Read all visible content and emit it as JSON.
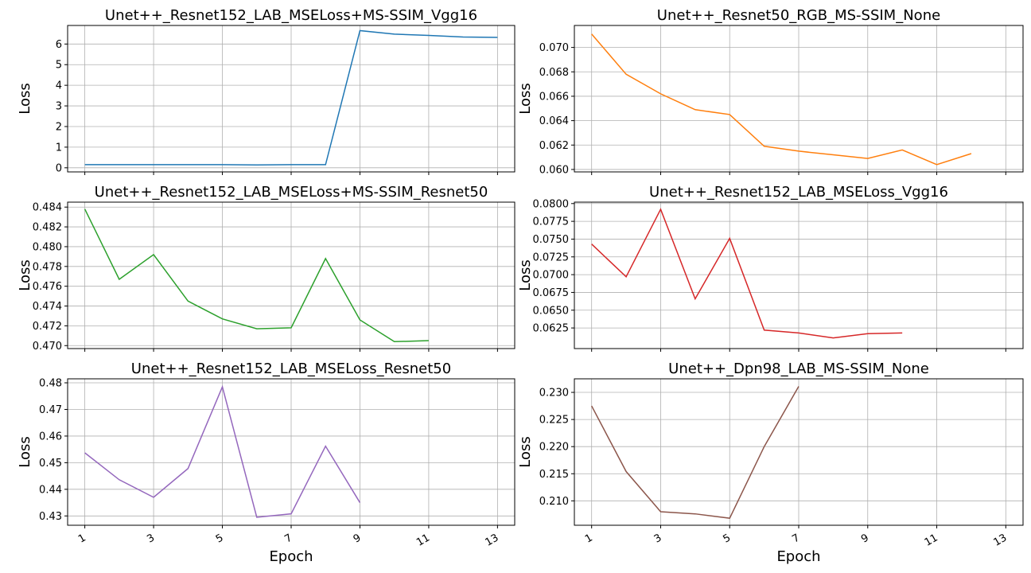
{
  "xlabel": "Epoch",
  "chart_data": [
    {
      "type": "line",
      "title": "Unet++_Resnet152_LAB_MSELoss+MS-SSIM_Vgg16",
      "ylabel": "Loss",
      "xlabel": "",
      "color": "#1f77b4",
      "x": [
        1,
        2,
        3,
        4,
        5,
        6,
        7,
        8,
        9,
        10,
        11,
        12,
        13
      ],
      "values": [
        0.15,
        0.15,
        0.15,
        0.15,
        0.15,
        0.14,
        0.15,
        0.15,
        6.65,
        6.48,
        6.42,
        6.34,
        6.32
      ],
      "xlim": [
        0.5,
        13.5
      ],
      "ylim": [
        -0.2,
        6.9
      ],
      "yticks": [
        0,
        1,
        2,
        3,
        4,
        5,
        6
      ],
      "ytick_labels": [
        "0",
        "1",
        "2",
        "3",
        "4",
        "5",
        "6"
      ],
      "xticks": [
        1,
        3,
        5,
        7,
        9,
        11,
        13
      ],
      "xtick_labels": [],
      "grid": true
    },
    {
      "type": "line",
      "title": "Unet++_Resnet50_RGB_MS-SSIM_None",
      "ylabel": "Loss",
      "xlabel": "",
      "color": "#ff7f0e",
      "x": [
        1,
        2,
        3,
        4,
        5,
        6,
        7,
        8,
        9,
        10,
        11,
        12
      ],
      "values": [
        0.0711,
        0.0678,
        0.0662,
        0.0649,
        0.0645,
        0.0619,
        0.0615,
        0.0612,
        0.0609,
        0.0616,
        0.0604,
        0.0613
      ],
      "xlim": [
        0.5,
        13.5
      ],
      "ylim": [
        0.0598,
        0.0718
      ],
      "yticks": [
        0.06,
        0.062,
        0.064,
        0.066,
        0.068,
        0.07
      ],
      "ytick_labels": [
        "0.060",
        "0.062",
        "0.064",
        "0.066",
        "0.068",
        "0.070"
      ],
      "xticks": [
        1,
        3,
        5,
        7,
        9,
        11,
        13
      ],
      "xtick_labels": [],
      "grid": true
    },
    {
      "type": "line",
      "title": "Unet++_Resnet152_LAB_MSELoss+MS-SSIM_Resnet50",
      "ylabel": "Loss",
      "xlabel": "",
      "color": "#2ca02c",
      "x": [
        1,
        2,
        3,
        4,
        5,
        6,
        7,
        8,
        9,
        10,
        11
      ],
      "values": [
        0.4838,
        0.4767,
        0.4792,
        0.4745,
        0.4727,
        0.4717,
        0.4718,
        0.4788,
        0.4726,
        0.4704,
        0.4705
      ],
      "xlim": [
        0.5,
        13.5
      ],
      "ylim": [
        0.4697,
        0.4845
      ],
      "yticks": [
        0.47,
        0.472,
        0.474,
        0.476,
        0.478,
        0.48,
        0.482,
        0.484
      ],
      "ytick_labels": [
        "0.470",
        "0.472",
        "0.474",
        "0.476",
        "0.478",
        "0.480",
        "0.482",
        "0.484"
      ],
      "xticks": [
        1,
        3,
        5,
        7,
        9,
        11,
        13
      ],
      "xtick_labels": [],
      "grid": true
    },
    {
      "type": "line",
      "title": "Unet++_Resnet152_LAB_MSELoss_Vgg16",
      "ylabel": "Loss",
      "xlabel": "",
      "color": "#d62728",
      "x": [
        1,
        2,
        3,
        4,
        5,
        6,
        7,
        8,
        9,
        10
      ],
      "values": [
        0.0743,
        0.0697,
        0.0792,
        0.0666,
        0.0751,
        0.0622,
        0.0618,
        0.0611,
        0.0617,
        0.0618
      ],
      "xlim": [
        0.5,
        13.5
      ],
      "ylim": [
        0.0596,
        0.0802
      ],
      "yticks": [
        0.0625,
        0.065,
        0.0675,
        0.07,
        0.0725,
        0.075,
        0.0775,
        0.08
      ],
      "ytick_labels": [
        "0.0625",
        "0.0650",
        "0.0675",
        "0.0700",
        "0.0725",
        "0.0750",
        "0.0775",
        "0.0800"
      ],
      "xticks": [
        1,
        3,
        5,
        7,
        9,
        11,
        13
      ],
      "xtick_labels": [],
      "grid": true
    },
    {
      "type": "line",
      "title": "Unet++_Resnet152_LAB_MSELoss_Resnet50",
      "ylabel": "Loss",
      "xlabel": "Epoch",
      "color": "#9467bd",
      "x": [
        1,
        2,
        3,
        4,
        5,
        6,
        7,
        8,
        9
      ],
      "values": [
        0.4537,
        0.4436,
        0.437,
        0.4478,
        0.4785,
        0.4295,
        0.4308,
        0.4562,
        0.435
      ],
      "xlim": [
        0.5,
        13.5
      ],
      "ylim": [
        0.4265,
        0.4815
      ],
      "yticks": [
        0.43,
        0.44,
        0.45,
        0.46,
        0.47,
        0.48
      ],
      "ytick_labels": [
        "0.43",
        "0.44",
        "0.45",
        "0.46",
        "0.47",
        "0.48"
      ],
      "xticks": [
        1,
        3,
        5,
        7,
        9,
        11,
        13
      ],
      "xtick_labels": [
        "1",
        "3",
        "5",
        "7",
        "9",
        "11",
        "13"
      ],
      "grid": true
    },
    {
      "type": "line",
      "title": "Unet++_Dpn98_LAB_MS-SSIM_None",
      "ylabel": "Loss",
      "xlabel": "Epoch",
      "color": "#8c564b",
      "x": [
        1,
        2,
        3,
        4,
        5,
        6,
        7
      ],
      "values": [
        0.2275,
        0.2154,
        0.208,
        0.2076,
        0.2068,
        0.22,
        0.2311
      ],
      "xlim": [
        0.5,
        13.5
      ],
      "ylim": [
        0.2055,
        0.2325
      ],
      "yticks": [
        0.21,
        0.215,
        0.22,
        0.225,
        0.23
      ],
      "ytick_labels": [
        "0.210",
        "0.215",
        "0.220",
        "0.225",
        "0.230"
      ],
      "xticks": [
        1,
        3,
        5,
        7,
        9,
        11,
        13
      ],
      "xtick_labels": [
        "1",
        "3",
        "5",
        "7",
        "9",
        "11",
        "13"
      ],
      "grid": true
    }
  ]
}
